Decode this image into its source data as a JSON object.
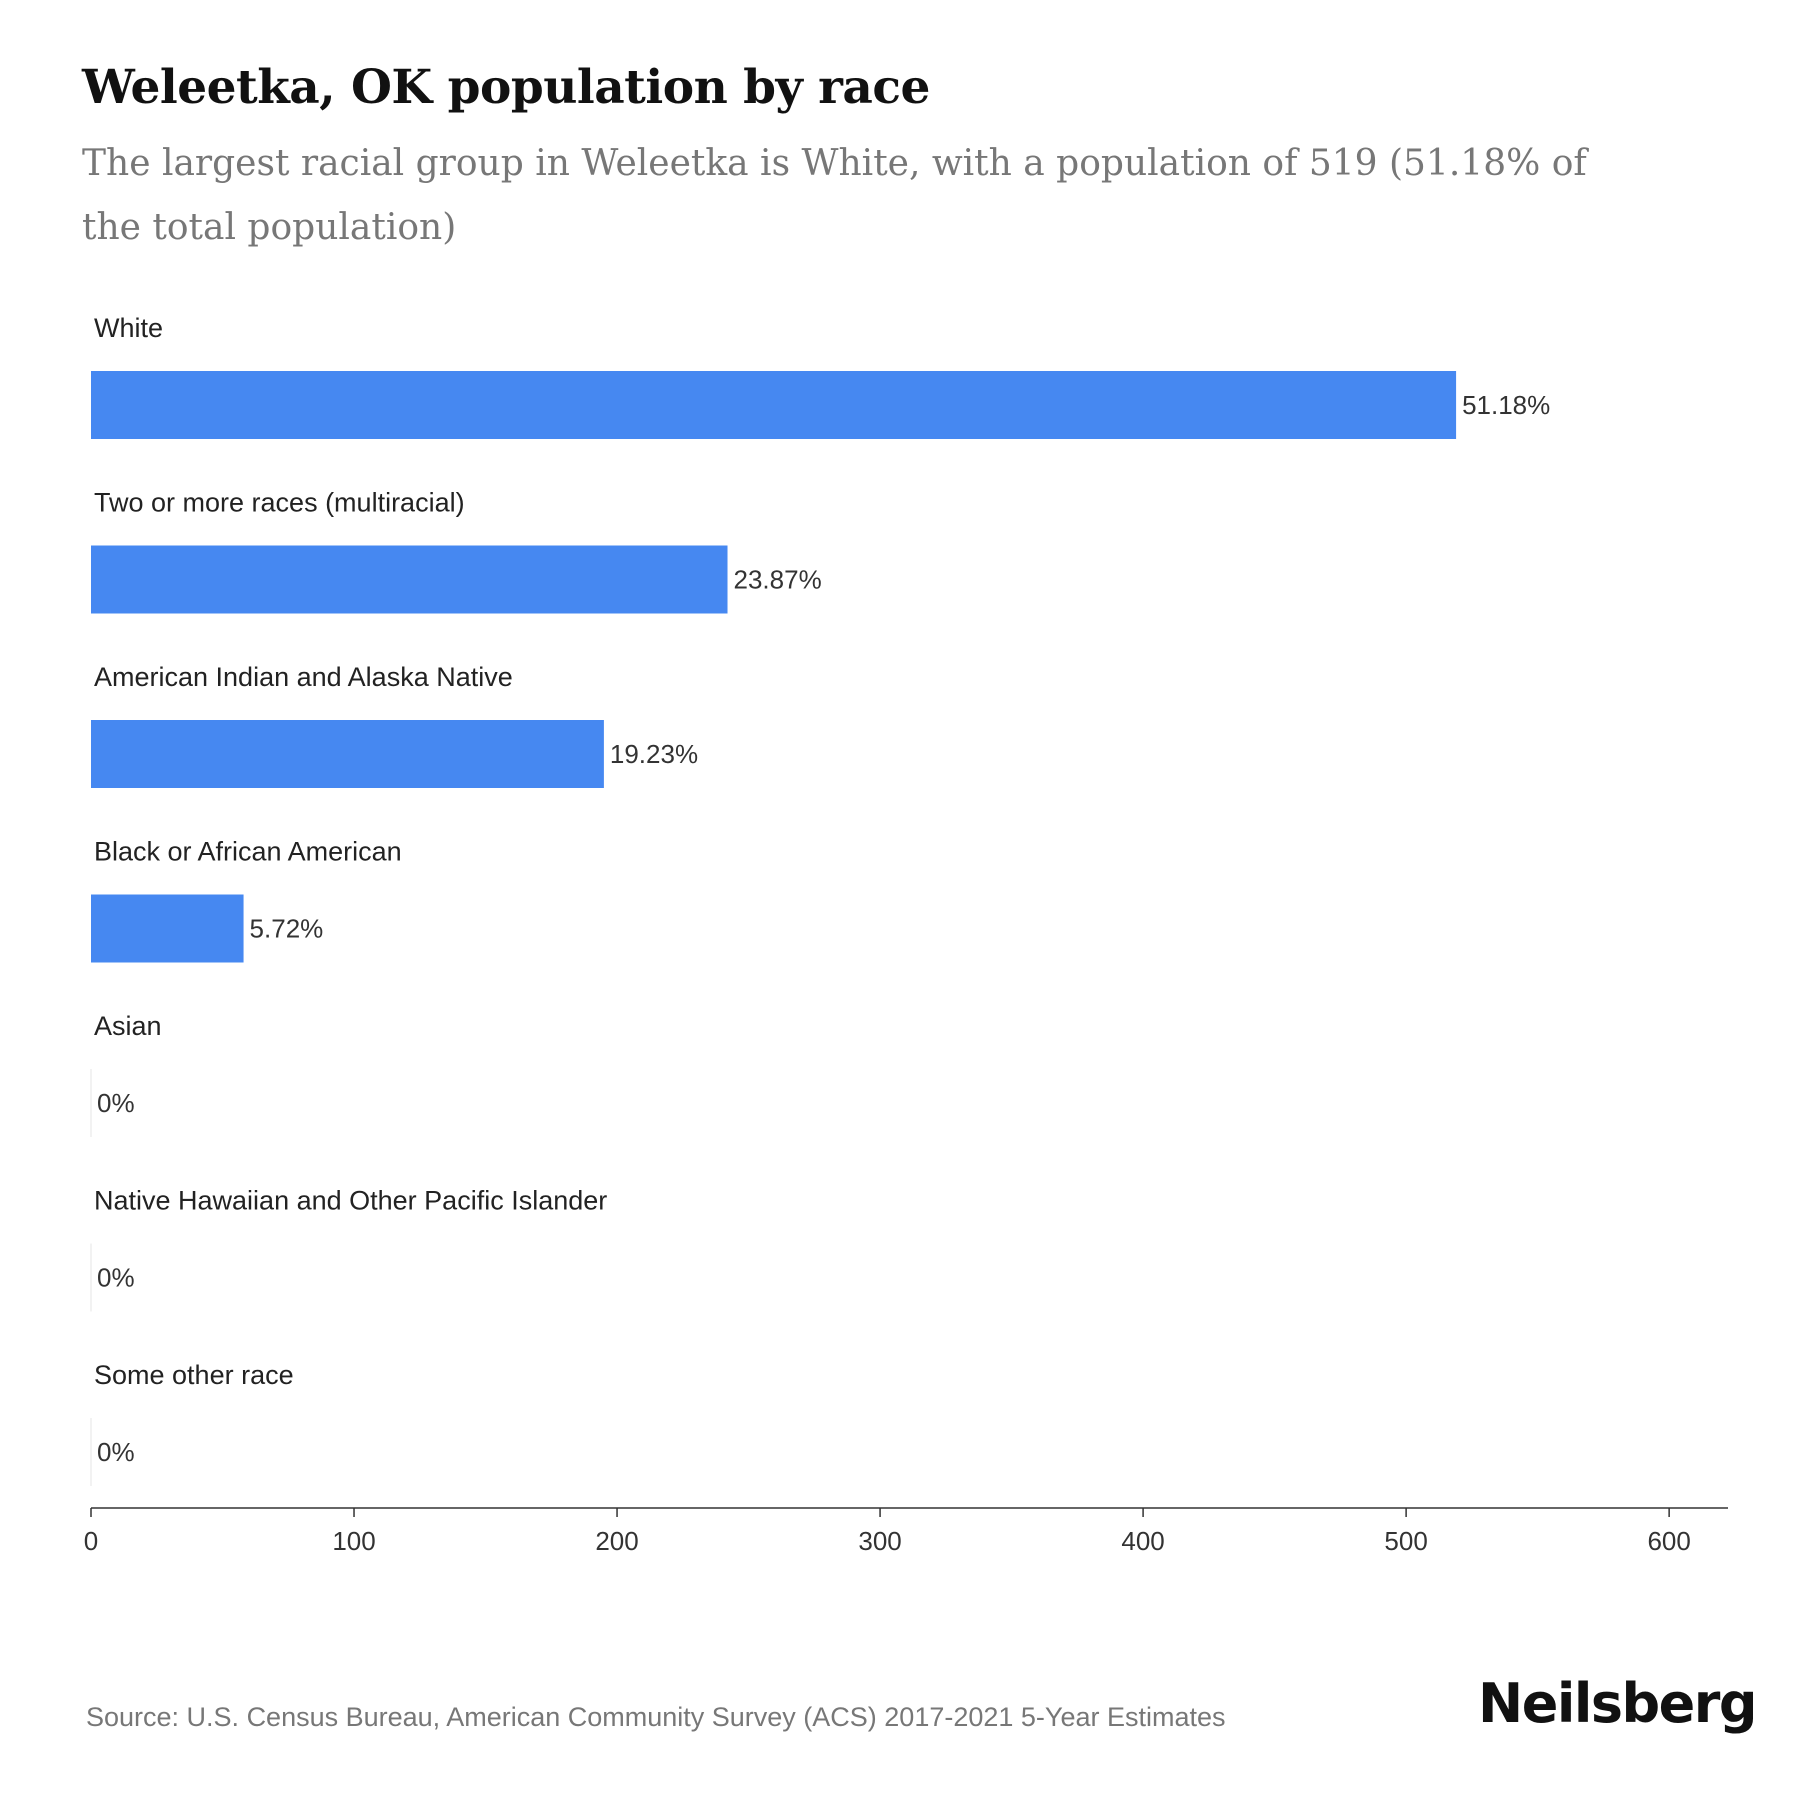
{
  "header": {
    "title": "Weleetka, OK population by race",
    "subtitle": "The largest racial group in Weleetka is White, with a population of 519 (51.18% of the total population)"
  },
  "footer": {
    "source": "Source: U.S. Census Bureau, American Community Survey (ACS) 2017-2021 5-Year Estimates",
    "brand": "Neilsberg"
  },
  "colors": {
    "bar": "#4688f1",
    "axis": "#333333",
    "label": "#222222",
    "value_label": "#333333"
  },
  "chart_data": {
    "type": "bar",
    "orientation": "horizontal",
    "title": "Weleetka, OK population by race",
    "categories": [
      "White",
      "Two or more races (multiracial)",
      "American Indian and Alaska Native",
      "Black or African American",
      "Asian",
      "Native Hawaiian and Other Pacific Islander",
      "Some other race"
    ],
    "values": [
      519,
      242,
      195,
      58,
      0,
      0,
      0
    ],
    "data_labels": [
      "51.18%",
      "23.87%",
      "19.23%",
      "5.72%",
      "0%",
      "0%",
      "0%"
    ],
    "xlim": [
      0,
      622
    ],
    "xticks": [
      0,
      100,
      200,
      300,
      400,
      500,
      600
    ],
    "xlabel": "",
    "ylabel": "",
    "grid": false,
    "legend": "none"
  }
}
